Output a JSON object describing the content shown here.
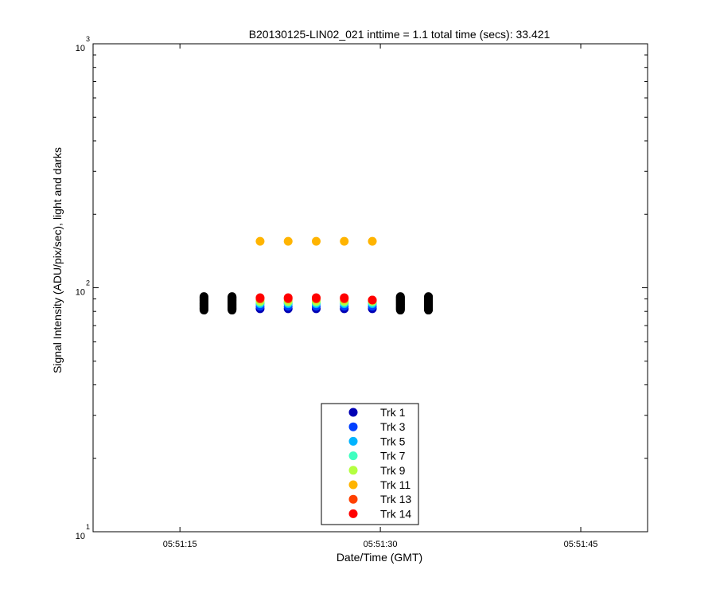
{
  "chart_data": {
    "type": "scatter",
    "title": "B20130125-LIN02_021 inttime = 1.1 total time (secs): 33.421",
    "xlabel": "Date/Time (GMT)",
    "ylabel": "Signal Intensity (ADU/pix/sec), light and darks",
    "yscale": "log",
    "ylim": [
      10,
      1000
    ],
    "xlim": [
      8.5,
      50.0
    ],
    "x_units": "seconds after 05:51:00 GMT",
    "x_ticks": [
      {
        "value": 15,
        "label": "05:51:15"
      },
      {
        "value": 30,
        "label": "05:51:30"
      },
      {
        "value": 45,
        "label": "05:51:45"
      }
    ],
    "y_ticks": [
      {
        "value": 10,
        "base": "10",
        "exp": "1"
      },
      {
        "value": 100,
        "base": "10",
        "exp": "2"
      },
      {
        "value": 1000,
        "base": "10",
        "exp": "3"
      }
    ],
    "light_times": [
      21.0,
      23.1,
      25.2,
      27.3,
      29.4
    ],
    "dark_times": [
      16.8,
      18.9,
      31.5,
      33.6
    ],
    "dark_range": [
      81,
      92
    ],
    "series": [
      {
        "name": "Trk 1",
        "color": "#0000b4",
        "values": [
          82,
          82,
          82,
          82,
          82
        ]
      },
      {
        "name": "Trk 3",
        "color": "#0040ff",
        "values": [
          84,
          84,
          84,
          84,
          84
        ]
      },
      {
        "name": "Trk 5",
        "color": "#00b4ff",
        "values": [
          86,
          86,
          86,
          86,
          86
        ]
      },
      {
        "name": "Trk 7",
        "color": "#40ffc0",
        "values": [
          87,
          87,
          87,
          87,
          87
        ]
      },
      {
        "name": "Trk 9",
        "color": "#b4ff40",
        "values": [
          88,
          88,
          88,
          88,
          88
        ]
      },
      {
        "name": "Trk 11",
        "color": "#ffb400",
        "values": [
          155,
          155,
          155,
          155,
          155
        ]
      },
      {
        "name": "Trk 13",
        "color": "#ff4000",
        "values": [
          90,
          90,
          90,
          90,
          89
        ]
      },
      {
        "name": "Trk 14",
        "color": "#ff0000",
        "values": [
          91,
          91,
          91,
          91,
          89
        ]
      }
    ],
    "dark_color": "#000000",
    "legend_position": "bottom-center"
  }
}
